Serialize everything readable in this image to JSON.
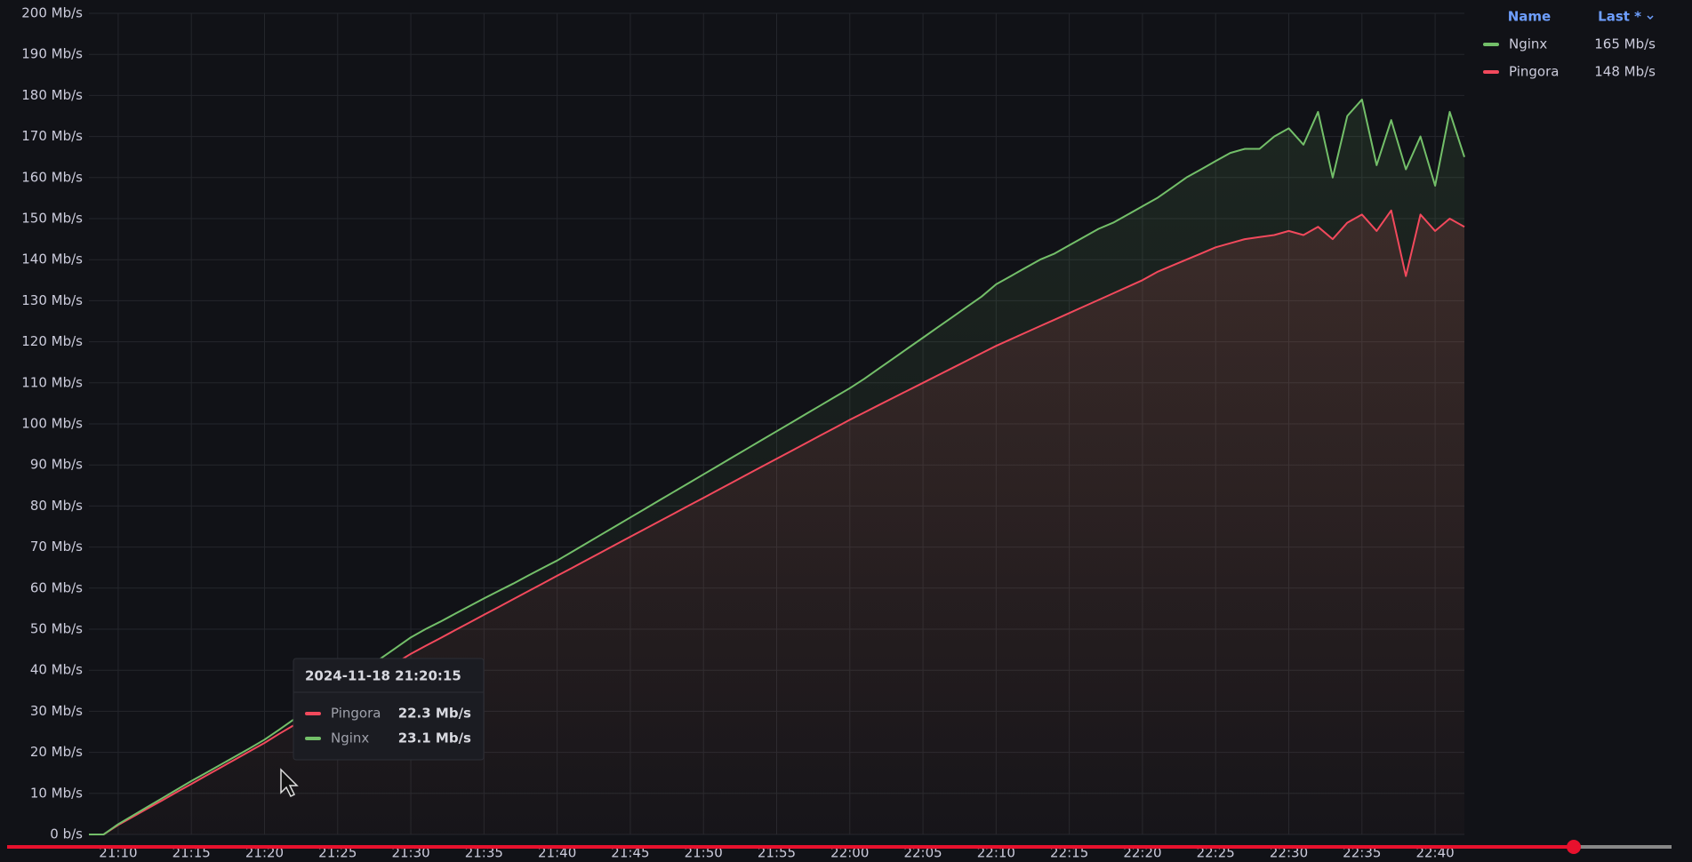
{
  "chart_data": {
    "type": "line",
    "x": [
      "21:08",
      "21:09",
      "21:10",
      "21:11",
      "21:12",
      "21:13",
      "21:14",
      "21:15",
      "21:16",
      "21:17",
      "21:18",
      "21:19",
      "21:20",
      "21:21",
      "21:22",
      "21:23",
      "21:24",
      "21:25",
      "21:26",
      "21:27",
      "21:28",
      "21:29",
      "21:30",
      "21:31",
      "21:32",
      "21:33",
      "21:34",
      "21:35",
      "21:36",
      "21:37",
      "21:38",
      "21:39",
      "21:40",
      "21:41",
      "21:42",
      "21:43",
      "21:44",
      "21:45",
      "21:46",
      "21:47",
      "21:48",
      "21:49",
      "21:50",
      "21:51",
      "21:52",
      "21:53",
      "21:54",
      "21:55",
      "21:56",
      "21:57",
      "21:58",
      "21:59",
      "22:00",
      "22:01",
      "22:02",
      "22:03",
      "22:04",
      "22:05",
      "22:06",
      "22:07",
      "22:08",
      "22:09",
      "22:10",
      "22:11",
      "22:12",
      "22:13",
      "22:14",
      "22:15",
      "22:16",
      "22:17",
      "22:18",
      "22:19",
      "22:20",
      "22:21",
      "22:22",
      "22:23",
      "22:24",
      "22:25",
      "22:26",
      "22:27",
      "22:28",
      "22:29",
      "22:30",
      "22:31",
      "22:32",
      "22:33",
      "22:34",
      "22:35",
      "22:36",
      "22:37",
      "22:38",
      "22:39",
      "22:40",
      "22:41",
      "22:42"
    ],
    "series": [
      {
        "name": "Nginx",
        "color": "#73bf69",
        "last": "165 Mb/s",
        "values": [
          0,
          0,
          2.5,
          4.6,
          6.7,
          8.8,
          10.9,
          13,
          15,
          17,
          19,
          21,
          23.1,
          25.5,
          28,
          30.5,
          33,
          35.5,
          38,
          40.5,
          43,
          45.5,
          48,
          50,
          51.8,
          53.7,
          55.6,
          57.5,
          59.3,
          61.1,
          63,
          64.9,
          66.7,
          68.8,
          70.9,
          73,
          75.1,
          77.2,
          79.3,
          81.4,
          83.5,
          85.6,
          87.7,
          89.8,
          91.9,
          94,
          96.1,
          98.2,
          100.3,
          102.4,
          104.5,
          106.6,
          108.7,
          111,
          113.5,
          116,
          118.5,
          121,
          123.5,
          126,
          128.5,
          131,
          134,
          136,
          138,
          140,
          141.5,
          143.5,
          145.5,
          147.5,
          149,
          151,
          153,
          155,
          157.5,
          160,
          162,
          164,
          166,
          167,
          167,
          170,
          172,
          168,
          176,
          160,
          175,
          179,
          163,
          174,
          162,
          170,
          158,
          176,
          165
        ]
      },
      {
        "name": "Pingora",
        "color": "#f2495c",
        "last": "148 Mb/s",
        "values": [
          0,
          0,
          2.3,
          4.3,
          6.3,
          8.3,
          10.3,
          12.3,
          14.3,
          16.3,
          18.3,
          20.3,
          22.3,
          24.5,
          26.6,
          28.8,
          31,
          33.2,
          35.3,
          37.5,
          39.7,
          41.8,
          44,
          45.9,
          47.8,
          49.7,
          51.6,
          53.5,
          55.4,
          57.3,
          59.2,
          61.1,
          63,
          64.9,
          66.8,
          68.7,
          70.6,
          72.5,
          74.4,
          76.3,
          78.2,
          80.1,
          82,
          83.9,
          85.8,
          87.7,
          89.6,
          91.5,
          93.4,
          95.3,
          97.2,
          99.1,
          101,
          102.8,
          104.6,
          106.4,
          108.2,
          110,
          111.8,
          113.6,
          115.4,
          117.2,
          119,
          120.6,
          122.2,
          123.8,
          125.4,
          127,
          128.6,
          130.2,
          131.8,
          133.4,
          135,
          137,
          138.5,
          140,
          141.5,
          143,
          144,
          145,
          145.5,
          146,
          147,
          146,
          148,
          145,
          149,
          151,
          147,
          152,
          136,
          151,
          147,
          150,
          148
        ]
      }
    ],
    "xlim": [
      "21:08",
      "22:42"
    ],
    "xticks": [
      "21:10",
      "21:15",
      "21:20",
      "21:25",
      "21:30",
      "21:35",
      "21:40",
      "21:45",
      "21:50",
      "21:55",
      "22:00",
      "22:05",
      "22:10",
      "22:15",
      "22:20",
      "22:25",
      "22:30",
      "22:35",
      "22:40"
    ],
    "ylim": [
      0,
      200
    ],
    "yticks": [
      {
        "value": 0,
        "label": "0 b/s"
      },
      {
        "value": 10,
        "label": "10 Mb/s"
      },
      {
        "value": 20,
        "label": "20 Mb/s"
      },
      {
        "value": 30,
        "label": "30 Mb/s"
      },
      {
        "value": 40,
        "label": "40 Mb/s"
      },
      {
        "value": 50,
        "label": "50 Mb/s"
      },
      {
        "value": 60,
        "label": "60 Mb/s"
      },
      {
        "value": 70,
        "label": "70 Mb/s"
      },
      {
        "value": 80,
        "label": "80 Mb/s"
      },
      {
        "value": 90,
        "label": "90 Mb/s"
      },
      {
        "value": 100,
        "label": "100 Mb/s"
      },
      {
        "value": 110,
        "label": "110 Mb/s"
      },
      {
        "value": 120,
        "label": "120 Mb/s"
      },
      {
        "value": 130,
        "label": "130 Mb/s"
      },
      {
        "value": 140,
        "label": "140 Mb/s"
      },
      {
        "value": 150,
        "label": "150 Mb/s"
      },
      {
        "value": 160,
        "label": "160 Mb/s"
      },
      {
        "value": 170,
        "label": "170 Mb/s"
      },
      {
        "value": 180,
        "label": "180 Mb/s"
      },
      {
        "value": 190,
        "label": "190 Mb/s"
      },
      {
        "value": 200,
        "label": "200 Mb/s"
      }
    ],
    "grid": true,
    "fill_area": true,
    "legend": {
      "position": "top-right",
      "columns": [
        "Name",
        "Last *"
      ]
    },
    "tooltip": {
      "time": "2024-11-18 21:20:15",
      "rows": [
        {
          "name": "Pingora",
          "value": "22.3 Mb/s"
        },
        {
          "name": "Nginx",
          "value": "23.1 Mb/s"
        }
      ]
    }
  }
}
